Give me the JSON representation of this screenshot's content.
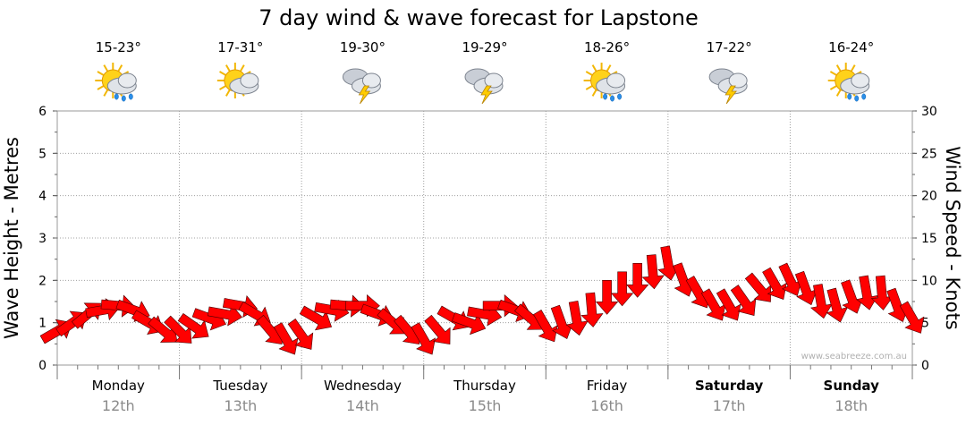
{
  "chart_data": {
    "type": "line",
    "title": "7 day wind & wave forecast for Lapstone",
    "ylabel_left": "Wave Height - Metres",
    "ylabel_right": "Wind Speed - Knots",
    "ylim_left": [
      0,
      6
    ],
    "ylim_right": [
      0,
      30
    ],
    "yticks_left": [
      "0",
      "1",
      "2",
      "3",
      "4",
      "5",
      "6"
    ],
    "yticks_right": [
      "0",
      "5",
      "10",
      "15",
      "20",
      "25",
      "30"
    ],
    "grid": true,
    "watermark": "www.seabreeze.com.au",
    "days": [
      {
        "day": "Monday",
        "date": "12th",
        "temp": "15-23°",
        "icon": "sun-cloud-showers-icon",
        "weekend": false
      },
      {
        "day": "Tuesday",
        "date": "13th",
        "temp": "17-31°",
        "icon": "sun-cloud-icon",
        "weekend": false
      },
      {
        "day": "Wednesday",
        "date": "14th",
        "temp": "19-30°",
        "icon": "cloud-thunderstorm-icon",
        "weekend": false
      },
      {
        "day": "Thursday",
        "date": "15th",
        "temp": "19-29°",
        "icon": "cloud-thunderstorm-icon",
        "weekend": false
      },
      {
        "day": "Friday",
        "date": "16th",
        "temp": "18-26°",
        "icon": "sun-cloud-showers-icon",
        "weekend": false
      },
      {
        "day": "Saturday",
        "date": "17th",
        "temp": "17-22°",
        "icon": "cloud-thunderstorm-icon",
        "weekend": true
      },
      {
        "day": "Sunday",
        "date": "18th",
        "temp": "16-24°",
        "icon": "sun-cloud-showers-icon",
        "weekend": true
      }
    ],
    "series": [
      {
        "unit": "knots",
        "x_hours": [
          0,
          3,
          6,
          9,
          12,
          15,
          18,
          21,
          24,
          27,
          30,
          33,
          36,
          39,
          42,
          45,
          48,
          51,
          54,
          57,
          60,
          63,
          66,
          69,
          72,
          75,
          78,
          81,
          84,
          87,
          90,
          93,
          96,
          99,
          102,
          105,
          108,
          111,
          114,
          117,
          120,
          123,
          126,
          129,
          132,
          135,
          138,
          141,
          144,
          147,
          150,
          153,
          156,
          159,
          162,
          165,
          168
        ],
        "values": [
          4,
          5,
          6,
          6.5,
          7,
          6.5,
          5,
          4,
          4,
          4.5,
          5.5,
          6,
          7,
          6,
          4,
          3,
          3.5,
          5.5,
          6.5,
          7,
          7,
          6,
          5,
          4,
          3,
          4,
          5.5,
          5,
          6,
          7,
          6.5,
          5.5,
          4.5,
          5,
          5.5,
          6.5,
          8,
          9,
          10,
          11,
          12,
          10,
          8.5,
          7,
          7,
          7.5,
          9,
          9.5,
          10,
          9,
          7.5,
          7,
          8,
          8.5,
          8.5,
          7,
          5.5
        ],
        "directions_deg": [
          60,
          55,
          50,
          80,
          95,
          110,
          120,
          130,
          135,
          125,
          110,
          100,
          100,
          120,
          140,
          150,
          145,
          120,
          100,
          95,
          90,
          110,
          130,
          140,
          150,
          140,
          120,
          110,
          100,
          90,
          110,
          130,
          150,
          160,
          170,
          175,
          180,
          180,
          180,
          175,
          170,
          160,
          150,
          150,
          150,
          145,
          140,
          150,
          155,
          160,
          170,
          165,
          160,
          170,
          175,
          160,
          150
        ]
      }
    ]
  }
}
